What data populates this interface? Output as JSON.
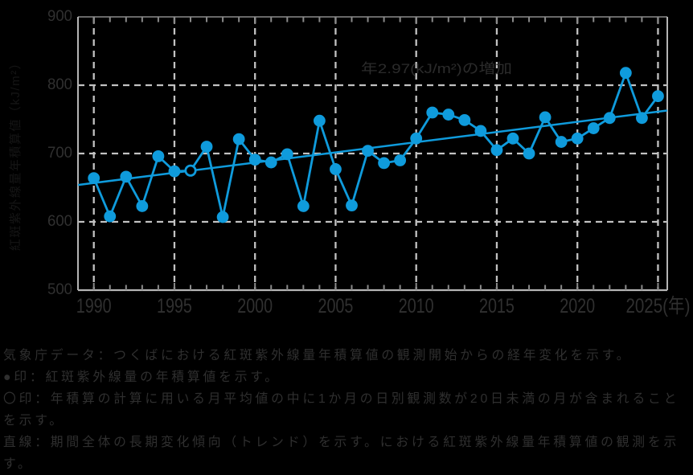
{
  "chart_data": {
    "type": "line",
    "title": "",
    "ylabel": "紅斑紫外線量年積算値（kJ/m²）",
    "xlabel_suffix": "(年)",
    "annotation": "年2.97(kJ/m²)の増加",
    "xlim": [
      1989.0,
      2025.6
    ],
    "ylim": [
      500,
      900
    ],
    "x_ticks": [
      1990,
      1995,
      2000,
      2005,
      2010,
      2015,
      2020,
      2025
    ],
    "y_ticks": [
      900,
      800,
      700,
      600,
      500
    ],
    "grid": "dashed",
    "legend_position": "none",
    "start_year": 1990,
    "years": [
      1990,
      1991,
      1992,
      1993,
      1994,
      1995,
      1996,
      1997,
      1998,
      1999,
      2000,
      2001,
      2002,
      2003,
      2004,
      2005,
      2006,
      2007,
      2008,
      2009,
      2010,
      2011,
      2012,
      2013,
      2014,
      2015,
      2016,
      2017,
      2018,
      2019,
      2020,
      2021,
      2022,
      2023,
      2024,
      2025
    ],
    "values": [
      664,
      608,
      666,
      623,
      696,
      674,
      675,
      710,
      607,
      721,
      691,
      687,
      699,
      623,
      748,
      677,
      624,
      704,
      686,
      690,
      722,
      760,
      757,
      749,
      733,
      705,
      722,
      700,
      753,
      717,
      722,
      737,
      752,
      818,
      752,
      784
    ],
    "open_circle_years": [
      1996
    ],
    "trend": {
      "rate_per_year": 2.97,
      "start": {
        "year": 1989.02,
        "value": 654
      },
      "end": {
        "year": 2025.57,
        "value": 763
      }
    },
    "colors": {
      "series": "#0F9BDC",
      "grid": "#c2c2c2",
      "frame": "#b5b5b5",
      "frame_top": "#8a8a8a",
      "tick": "#8a8a8a",
      "tick_label": "#303030",
      "annotation_text": "#2b2b2b",
      "ylabel_text": "#151515",
      "background": "#000000"
    }
  },
  "caption": {
    "display_lines": [
      "気象庁データ：つくばにおける紅斑紫外線量年積算値の観測開始からの経年変化を示す。",
      "●印：紅斑紫外線量の年積算値を示す。",
      "〇印：年積算の計算に用いる月平均値の中に1か月の日別観測数が20日未満の月が含まれること",
      "を示す。",
      "直線：期間全体の長期変化傾向（トレンド）を示す。における紅斑紫外線量年積算値の観測を示",
      "す。"
    ]
  }
}
